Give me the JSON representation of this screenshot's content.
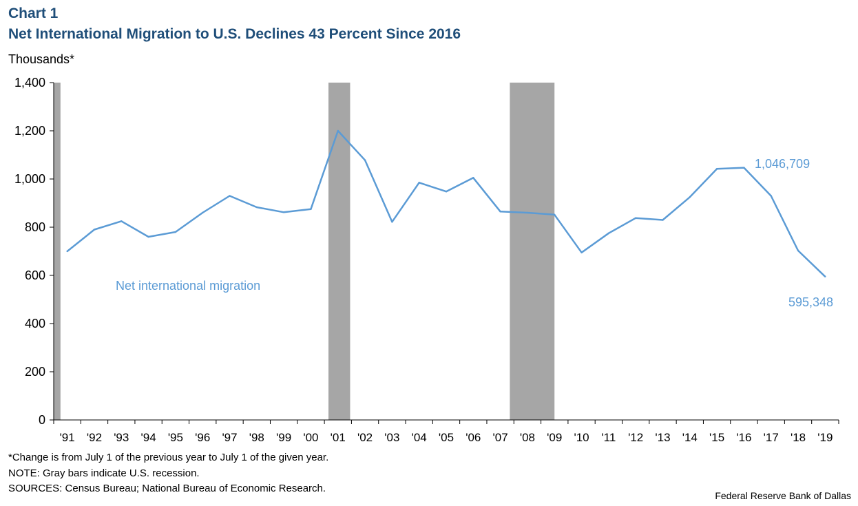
{
  "header": {
    "chart_number": "Chart 1",
    "title": "Net International Migration to U.S. Declines 43 Percent Since 2016",
    "units": "Thousands*"
  },
  "colors": {
    "title": "#1f4e79",
    "line": "#5b9bd5",
    "recession": "#a6a6a6",
    "axis": "#000000"
  },
  "chart_data": {
    "type": "line",
    "title": "Net International Migration to U.S. Declines 43 Percent Since 2016",
    "xlabel": "",
    "ylabel": "Thousands*",
    "ylim": [
      0,
      1400
    ],
    "yticks": [
      0,
      200,
      400,
      600,
      800,
      1000,
      1200,
      1400
    ],
    "ytick_labels": [
      "0",
      "200",
      "400",
      "600",
      "800",
      "1,000",
      "1,200",
      "1,400"
    ],
    "categories": [
      "'91",
      "'92",
      "'93",
      "'94",
      "'95",
      "'96",
      "'97",
      "'98",
      "'99",
      "'00",
      "'01",
      "'02",
      "'03",
      "'04",
      "'05",
      "'06",
      "'07",
      "'08",
      "'09",
      "'10",
      "'11",
      "'12",
      "'13",
      "'14",
      "'15",
      "'16",
      "'17",
      "'18",
      "'19"
    ],
    "series": [
      {
        "name": "Net international migration",
        "values": [
          700,
          790,
          825,
          760,
          780,
          860,
          930,
          883,
          862,
          875,
          1200,
          1078,
          822,
          985,
          948,
          1005,
          865,
          860,
          852,
          695,
          775,
          838,
          830,
          925,
          1042,
          1047,
          930,
          703,
          595
        ]
      }
    ],
    "recessions": [
      {
        "start": -0.5,
        "end": -0.25
      },
      {
        "start": 9.65,
        "end": 10.45
      },
      {
        "start": 16.35,
        "end": 18.0
      }
    ],
    "annotations": {
      "series_label": "Net international migration",
      "peak_label": "1,046,709",
      "latest_label": "595,348"
    },
    "grid": false,
    "legend": "none"
  },
  "footer": {
    "note_change": "*Change is from July 1 of the previous year to July 1 of the given year.",
    "note_gray": "NOTE: Gray bars indicate U.S. recession.",
    "sources": "SOURCES: Census Bureau; National Bureau of Economic Research.",
    "credit": "Federal Reserve  Bank of Dallas"
  }
}
